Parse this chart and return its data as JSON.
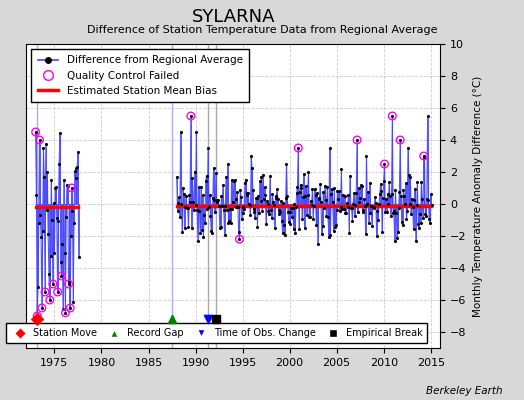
{
  "title": "SYLARNA",
  "subtitle": "Difference of Station Temperature Data from Regional Average",
  "ylabel": "Monthly Temperature Anomaly Difference (°C)",
  "xlim": [
    1972,
    2016
  ],
  "ylim": [
    -9,
    10
  ],
  "yticks": [
    -8,
    -6,
    -4,
    -2,
    0,
    2,
    4,
    6,
    8,
    10
  ],
  "xticks": [
    1975,
    1980,
    1985,
    1990,
    1995,
    2000,
    2005,
    2010,
    2015
  ],
  "bias_line_y1": -0.2,
  "bias_line_y2": -0.1,
  "bias_line_color": "#ff0000",
  "main_line_color": "#4444ff",
  "dot_color": "#000000",
  "qc_fail_color": "#ff00ff",
  "plot_bg_color": "#ffffff",
  "fig_bg_color": "#d8d8d8",
  "station_move_x": [
    1973.1
  ],
  "record_gap_x": [
    1987.5
  ],
  "obs_change_x": [
    1991.3
  ],
  "empirical_break_x": [
    1992.2
  ],
  "gap_start": 1977.5,
  "gap_end": 1988.0,
  "watermark": "Berkeley Earth"
}
